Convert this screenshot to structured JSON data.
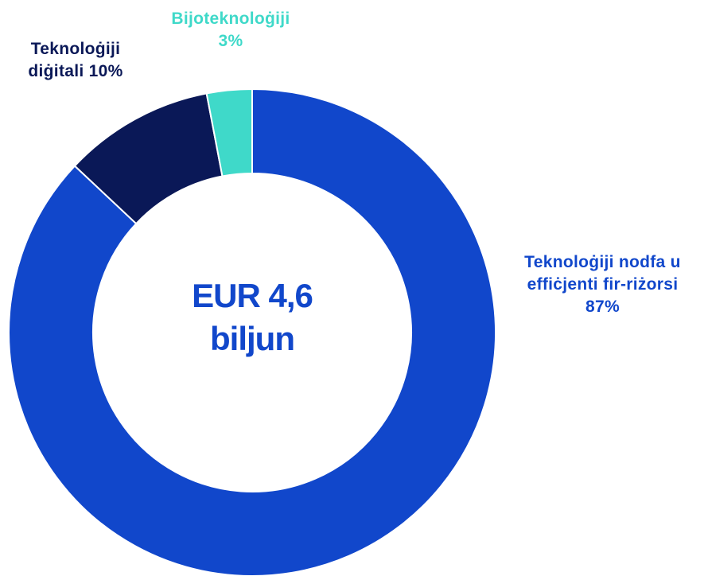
{
  "chart_data": {
    "type": "pie",
    "center_label": "EUR 4,6 biljun",
    "categories": [
      "Teknoloġiji nodfa u effiċjenti fir-riżorsi",
      "Teknoloġiji diġitali",
      "Bijoteknoloġiji"
    ],
    "values": [
      87,
      10,
      3
    ],
    "value_labels": [
      "87%",
      "10%",
      "3%"
    ],
    "colors": [
      "#1147cb",
      "#0a1857",
      "#3fd9c9"
    ]
  }
}
